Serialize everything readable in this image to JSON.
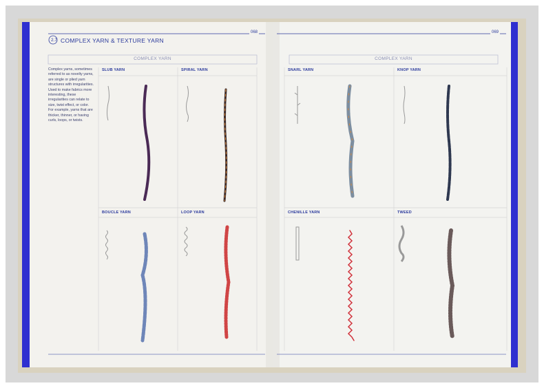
{
  "header": {
    "section_number": "2.7",
    "title": "COMPLEX YARN & TEXTURE YARN",
    "left_page_number": "068",
    "right_page_number": "069"
  },
  "left_page": {
    "band_label": "COMPLEX YARN",
    "description": "Complex yarns, sometimes referred to as novelty yarns, are single or plied yarn structures with irregularities. Used to make fabrics more interesting, these irregularities can relate to size, twist effect, or color. For example, yarns that are thicker, thinner, or having curls, loops, or twists.",
    "yarns": [
      "SLUB YARN",
      "SPIRAL YARN",
      "BOUCLE YARN",
      "LOOP YARN"
    ]
  },
  "right_page": {
    "band_label": "COMPLEX YARN",
    "yarns": [
      "SNARL YARN",
      "KNOP YARN",
      "CHENILLE YARN",
      "TWEED"
    ]
  }
}
